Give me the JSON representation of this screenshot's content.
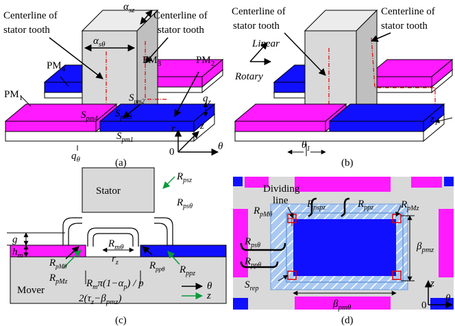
{
  "panel_a": {
    "caption": "(a)",
    "labels": [
      [
        "Centerline of"
      ],
      [
        "stator tooth"
      ],
      [
        "Centerline of"
      ],
      [
        "stator tooth"
      ],
      [
        "α",
        "sz"
      ],
      [
        "α",
        "sθ"
      ],
      [
        "PM",
        "3"
      ],
      [
        "PM",
        "2"
      ],
      [
        "PM",
        "4"
      ],
      [
        "PM",
        "1"
      ],
      [
        "S",
        "pm4"
      ],
      [
        "S",
        "pm3"
      ],
      [
        "S",
        "pm2"
      ],
      [
        "S",
        "pm1"
      ],
      [
        "q",
        "z"
      ],
      [
        "q",
        "θ"
      ],
      [
        "z"
      ],
      [
        "r"
      ],
      [
        "θ"
      ],
      [
        "0"
      ]
    ]
  },
  "panel_b": {
    "caption": "(b)",
    "labels": [
      [
        "Centerline of"
      ],
      [
        "stator tooth"
      ],
      [
        "Centerline of"
      ],
      [
        "stator tooth"
      ],
      [
        "Linear"
      ],
      [
        "Rotary"
      ],
      [
        "z",
        "1"
      ],
      [
        "θ",
        "1"
      ]
    ]
  },
  "panel_c": {
    "caption": "(c)",
    "labels": [
      [
        "Stator"
      ],
      [
        "R",
        "psz"
      ],
      [
        "R",
        "psθ"
      ],
      [
        "g"
      ],
      [
        "h",
        "m"
      ],
      [
        "R",
        "mθ"
      ],
      [
        "r",
        "z"
      ],
      [
        "R",
        "pMθ"
      ],
      [
        "R",
        "pMz"
      ],
      [
        "R",
        "ppθ"
      ],
      [
        "R",
        "ppz"
      ],
      [
        "R",
        "m",
        "π(1−α",
        "p",
        ") / p"
      ],
      [
        "2(τ",
        "z",
        "−β",
        "pmz",
        ")"
      ],
      [
        "θ"
      ],
      [
        "z"
      ],
      [
        "Mover"
      ]
    ]
  },
  "panel_d": {
    "caption": "(d)",
    "labels": [
      [
        "Dividing"
      ],
      [
        "line"
      ],
      [
        "R",
        "pMθ"
      ],
      [
        "R",
        "pspz"
      ],
      [
        "R",
        "ppz"
      ],
      [
        "R",
        "pMz"
      ],
      [
        "R",
        "psθ"
      ],
      [
        "R",
        "ppθ"
      ],
      [
        "S",
        "rep"
      ],
      [
        "β",
        "pmz"
      ],
      [
        "β",
        "pmθ"
      ],
      [
        "z"
      ],
      [
        "θ"
      ],
      [
        "0"
      ]
    ]
  }
}
